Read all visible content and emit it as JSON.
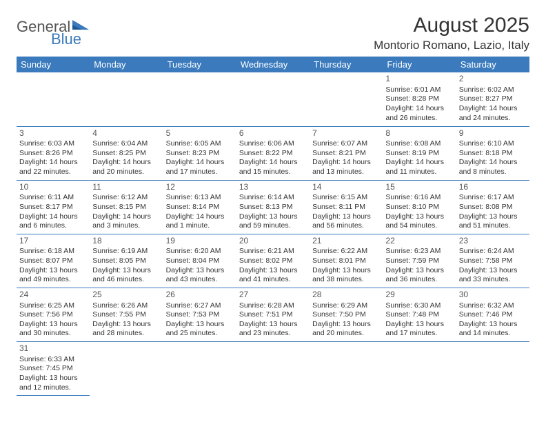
{
  "logo": {
    "word1": "General",
    "word2": "Blue"
  },
  "title": "August 2025",
  "location": "Montorio Romano, Lazio, Italy",
  "colors": {
    "header_bg": "#3a7abd",
    "header_text": "#ffffff",
    "rule": "#3a7abd",
    "text": "#333333"
  },
  "dow": [
    "Sunday",
    "Monday",
    "Tuesday",
    "Wednesday",
    "Thursday",
    "Friday",
    "Saturday"
  ],
  "weeks": [
    [
      null,
      null,
      null,
      null,
      null,
      {
        "n": "1",
        "sr": "Sunrise: 6:01 AM",
        "ss": "Sunset: 8:28 PM",
        "d1": "Daylight: 14 hours",
        "d2": "and 26 minutes."
      },
      {
        "n": "2",
        "sr": "Sunrise: 6:02 AM",
        "ss": "Sunset: 8:27 PM",
        "d1": "Daylight: 14 hours",
        "d2": "and 24 minutes."
      }
    ],
    [
      {
        "n": "3",
        "sr": "Sunrise: 6:03 AM",
        "ss": "Sunset: 8:26 PM",
        "d1": "Daylight: 14 hours",
        "d2": "and 22 minutes."
      },
      {
        "n": "4",
        "sr": "Sunrise: 6:04 AM",
        "ss": "Sunset: 8:25 PM",
        "d1": "Daylight: 14 hours",
        "d2": "and 20 minutes."
      },
      {
        "n": "5",
        "sr": "Sunrise: 6:05 AM",
        "ss": "Sunset: 8:23 PM",
        "d1": "Daylight: 14 hours",
        "d2": "and 17 minutes."
      },
      {
        "n": "6",
        "sr": "Sunrise: 6:06 AM",
        "ss": "Sunset: 8:22 PM",
        "d1": "Daylight: 14 hours",
        "d2": "and 15 minutes."
      },
      {
        "n": "7",
        "sr": "Sunrise: 6:07 AM",
        "ss": "Sunset: 8:21 PM",
        "d1": "Daylight: 14 hours",
        "d2": "and 13 minutes."
      },
      {
        "n": "8",
        "sr": "Sunrise: 6:08 AM",
        "ss": "Sunset: 8:19 PM",
        "d1": "Daylight: 14 hours",
        "d2": "and 11 minutes."
      },
      {
        "n": "9",
        "sr": "Sunrise: 6:10 AM",
        "ss": "Sunset: 8:18 PM",
        "d1": "Daylight: 14 hours",
        "d2": "and 8 minutes."
      }
    ],
    [
      {
        "n": "10",
        "sr": "Sunrise: 6:11 AM",
        "ss": "Sunset: 8:17 PM",
        "d1": "Daylight: 14 hours",
        "d2": "and 6 minutes."
      },
      {
        "n": "11",
        "sr": "Sunrise: 6:12 AM",
        "ss": "Sunset: 8:15 PM",
        "d1": "Daylight: 14 hours",
        "d2": "and 3 minutes."
      },
      {
        "n": "12",
        "sr": "Sunrise: 6:13 AM",
        "ss": "Sunset: 8:14 PM",
        "d1": "Daylight: 14 hours",
        "d2": "and 1 minute."
      },
      {
        "n": "13",
        "sr": "Sunrise: 6:14 AM",
        "ss": "Sunset: 8:13 PM",
        "d1": "Daylight: 13 hours",
        "d2": "and 59 minutes."
      },
      {
        "n": "14",
        "sr": "Sunrise: 6:15 AM",
        "ss": "Sunset: 8:11 PM",
        "d1": "Daylight: 13 hours",
        "d2": "and 56 minutes."
      },
      {
        "n": "15",
        "sr": "Sunrise: 6:16 AM",
        "ss": "Sunset: 8:10 PM",
        "d1": "Daylight: 13 hours",
        "d2": "and 54 minutes."
      },
      {
        "n": "16",
        "sr": "Sunrise: 6:17 AM",
        "ss": "Sunset: 8:08 PM",
        "d1": "Daylight: 13 hours",
        "d2": "and 51 minutes."
      }
    ],
    [
      {
        "n": "17",
        "sr": "Sunrise: 6:18 AM",
        "ss": "Sunset: 8:07 PM",
        "d1": "Daylight: 13 hours",
        "d2": "and 49 minutes."
      },
      {
        "n": "18",
        "sr": "Sunrise: 6:19 AM",
        "ss": "Sunset: 8:05 PM",
        "d1": "Daylight: 13 hours",
        "d2": "and 46 minutes."
      },
      {
        "n": "19",
        "sr": "Sunrise: 6:20 AM",
        "ss": "Sunset: 8:04 PM",
        "d1": "Daylight: 13 hours",
        "d2": "and 43 minutes."
      },
      {
        "n": "20",
        "sr": "Sunrise: 6:21 AM",
        "ss": "Sunset: 8:02 PM",
        "d1": "Daylight: 13 hours",
        "d2": "and 41 minutes."
      },
      {
        "n": "21",
        "sr": "Sunrise: 6:22 AM",
        "ss": "Sunset: 8:01 PM",
        "d1": "Daylight: 13 hours",
        "d2": "and 38 minutes."
      },
      {
        "n": "22",
        "sr": "Sunrise: 6:23 AM",
        "ss": "Sunset: 7:59 PM",
        "d1": "Daylight: 13 hours",
        "d2": "and 36 minutes."
      },
      {
        "n": "23",
        "sr": "Sunrise: 6:24 AM",
        "ss": "Sunset: 7:58 PM",
        "d1": "Daylight: 13 hours",
        "d2": "and 33 minutes."
      }
    ],
    [
      {
        "n": "24",
        "sr": "Sunrise: 6:25 AM",
        "ss": "Sunset: 7:56 PM",
        "d1": "Daylight: 13 hours",
        "d2": "and 30 minutes."
      },
      {
        "n": "25",
        "sr": "Sunrise: 6:26 AM",
        "ss": "Sunset: 7:55 PM",
        "d1": "Daylight: 13 hours",
        "d2": "and 28 minutes."
      },
      {
        "n": "26",
        "sr": "Sunrise: 6:27 AM",
        "ss": "Sunset: 7:53 PM",
        "d1": "Daylight: 13 hours",
        "d2": "and 25 minutes."
      },
      {
        "n": "27",
        "sr": "Sunrise: 6:28 AM",
        "ss": "Sunset: 7:51 PM",
        "d1": "Daylight: 13 hours",
        "d2": "and 23 minutes."
      },
      {
        "n": "28",
        "sr": "Sunrise: 6:29 AM",
        "ss": "Sunset: 7:50 PM",
        "d1": "Daylight: 13 hours",
        "d2": "and 20 minutes."
      },
      {
        "n": "29",
        "sr": "Sunrise: 6:30 AM",
        "ss": "Sunset: 7:48 PM",
        "d1": "Daylight: 13 hours",
        "d2": "and 17 minutes."
      },
      {
        "n": "30",
        "sr": "Sunrise: 6:32 AM",
        "ss": "Sunset: 7:46 PM",
        "d1": "Daylight: 13 hours",
        "d2": "and 14 minutes."
      }
    ],
    [
      {
        "n": "31",
        "sr": "Sunrise: 6:33 AM",
        "ss": "Sunset: 7:45 PM",
        "d1": "Daylight: 13 hours",
        "d2": "and 12 minutes."
      },
      null,
      null,
      null,
      null,
      null,
      null
    ]
  ]
}
